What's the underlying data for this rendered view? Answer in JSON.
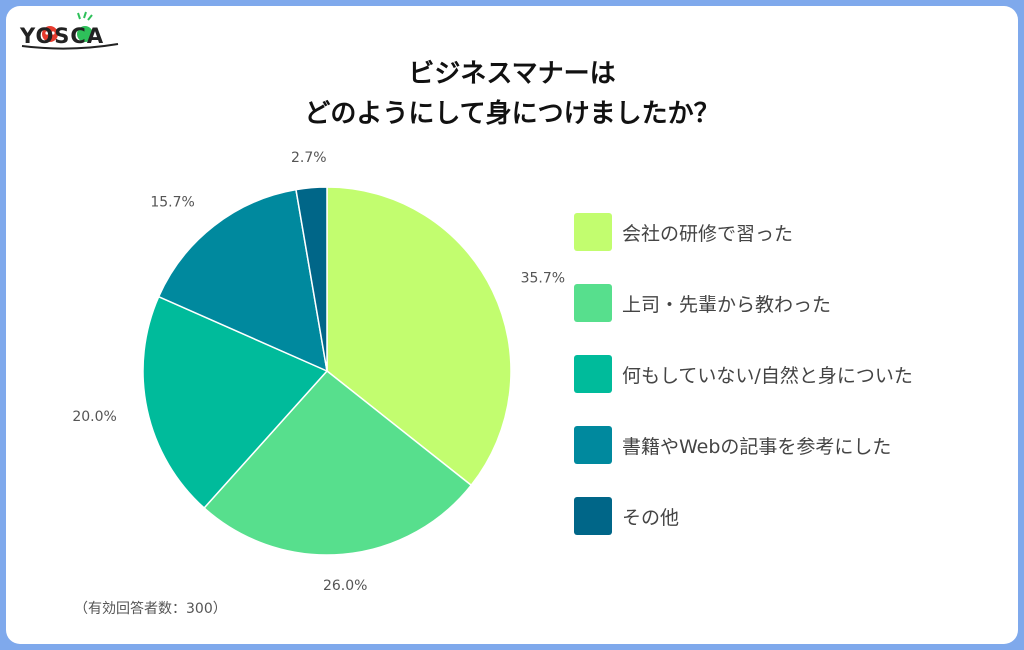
{
  "logo": {
    "text": "YOSCA"
  },
  "title_lines": [
    "ビジネスマナーは",
    "どのようにして身につけましたか？"
  ],
  "footnote": "（有効回答者数：300）",
  "colors": {
    "slice1": "#c2fd6f",
    "slice2": "#57df8d",
    "slice3": "#00bb9b",
    "slice4": "#00899e",
    "slice5": "#006688",
    "frame": "#7fa9ec"
  },
  "chart_data": {
    "type": "pie",
    "categories": [
      "会社の研修で習った",
      "上司・先輩から教わった",
      "何もしていない/自然と身についた",
      "書籍やWebの記事を参考にした",
      "その他"
    ],
    "values": [
      35.7,
      26.0,
      20.0,
      15.7,
      2.7
    ],
    "data_labels": [
      "35.7%",
      "26.0%",
      "20.0%",
      "15.7%",
      "2.7%"
    ],
    "title": "ビジネスマナーは どのようにして身につけましたか？",
    "legend_position": "right"
  }
}
